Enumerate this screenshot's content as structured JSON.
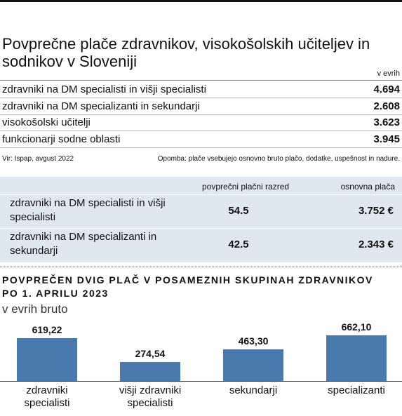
{
  "header": {
    "title": "Povprečne plače zdravnikov, visokošolskih učiteljev in sodnikov v Sloveniji",
    "unit": "v evrih"
  },
  "table1": {
    "rows": [
      [
        "zdravniki na DM specialisti in višji specialisti",
        "4.694"
      ],
      [
        "zdravniki na DM specializanti in sekundarji",
        "2.608"
      ],
      [
        "visokošolski učitelji",
        "3.623"
      ],
      [
        "funkcionarji sodne oblasti",
        "3.945"
      ]
    ],
    "source": "Vir: Ispap,  avgust 2022",
    "note": "Opomba: plače vsebujejo osnovno bruto plačo, dodatke, uspešnost  in nadure."
  },
  "table2": {
    "columns": [
      "povprečni plačni razred",
      "osnovna plača"
    ],
    "rows": [
      [
        "zdravniki na DM specialisti in višji specialisti",
        "54.5",
        "3.752 €"
      ],
      [
        "zdravniki na DM specializanti in sekundarji",
        "42.5",
        "2.343 €"
      ]
    ]
  },
  "chart_data": {
    "type": "bar",
    "title": "POVPREČEN DVIG PLAČ V POSAMEZNIH SKUPINAH ZDRAVNIKOV PO 1. APRILU 2023",
    "subtitle": "v evrih bruto",
    "categories": [
      "zdravniki specialisti",
      "višji zdravniki specialisti",
      "sekundarji",
      "specializanti"
    ],
    "values": [
      619.22,
      274.54,
      463.3,
      662.1
    ],
    "value_labels": [
      "619,22",
      "274,54",
      "463,30",
      "662,10"
    ],
    "color": "#4a7aad"
  }
}
